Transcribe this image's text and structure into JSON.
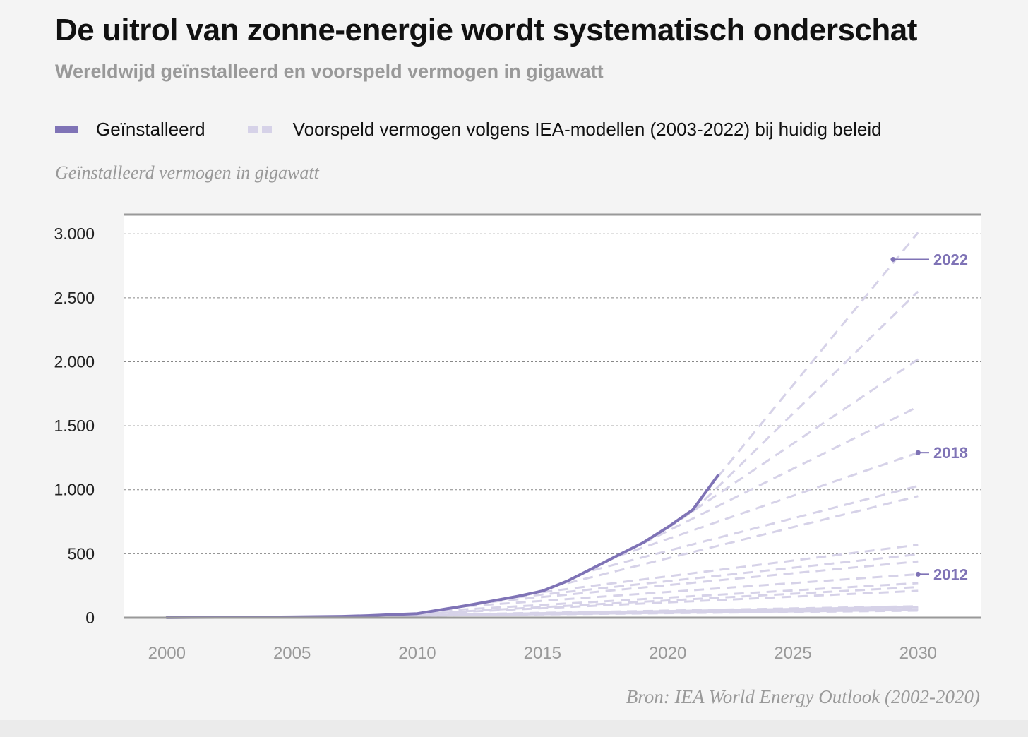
{
  "header": {
    "title": "De uitrol van zonne-energie wordt systematisch onderschat",
    "subtitle": "Wereldwijd geïnstalleerd en voorspeld vermogen in gigawatt"
  },
  "legend": {
    "installed": "Geïnstalleerd",
    "forecast": "Voorspeld vermogen volgens IEA-modellen (2003-2022) bij huidig beleid"
  },
  "footer": {
    "source": "Bron: IEA World Energy Outlook (2002-2020)"
  },
  "colors": {
    "installed": "#7f73b6",
    "forecast": "#d6d2e8",
    "grid": "#888888",
    "axis": "#999999"
  },
  "chart_data": {
    "type": "line",
    "ylabel": "Geïnstalleerd vermogen in gigawatt",
    "xlim": [
      1998.3,
      2032.5
    ],
    "ylim": [
      0,
      3150
    ],
    "x_ticks": [
      2000,
      2005,
      2010,
      2015,
      2020,
      2025,
      2030
    ],
    "x_tick_labels": [
      "2000",
      "2005",
      "2010",
      "2015",
      "2020",
      "2025",
      "2030"
    ],
    "y_ticks": [
      0,
      500,
      1000,
      1500,
      2000,
      2500,
      3000
    ],
    "y_tick_labels": [
      "0",
      "500",
      "1.000",
      "1.500",
      "2.000",
      "2.500",
      "3.000"
    ],
    "installed": {
      "x": [
        2000,
        2001,
        2002,
        2003,
        2004,
        2005,
        2006,
        2007,
        2008,
        2009,
        2010,
        2011,
        2012,
        2013,
        2014,
        2015,
        2016,
        2017,
        2018,
        2019,
        2020,
        2021,
        2022
      ],
      "y": [
        1,
        2,
        3,
        4,
        5,
        6,
        8,
        10,
        16,
        24,
        32,
        64,
        96,
        131,
        167,
        209,
        287,
        386,
        486,
        584,
        707,
        843,
        1110
      ]
    },
    "forecasts": [
      {
        "x": [
          2003,
          2030
        ],
        "y": [
          2,
          55
        ]
      },
      {
        "x": [
          2004,
          2030
        ],
        "y": [
          3,
          60
        ]
      },
      {
        "x": [
          2005,
          2030
        ],
        "y": [
          4,
          68
        ]
      },
      {
        "x": [
          2006,
          2030
        ],
        "y": [
          6,
          75
        ]
      },
      {
        "x": [
          2007,
          2030
        ],
        "y": [
          9,
          85
        ]
      },
      {
        "x": [
          2008,
          2030
        ],
        "y": [
          14,
          90
        ]
      },
      {
        "x": [
          2009,
          2030
        ],
        "y": [
          20,
          210
        ]
      },
      {
        "x": [
          2010,
          2030
        ],
        "y": [
          30,
          240
        ]
      },
      {
        "x": [
          2011,
          2030
        ],
        "y": [
          55,
          270
        ]
      },
      {
        "x": [
          2012,
          2030
        ],
        "y": [
          90,
          340
        ]
      },
      {
        "x": [
          2013,
          2030
        ],
        "y": [
          125,
          440
        ]
      },
      {
        "x": [
          2014,
          2030
        ],
        "y": [
          160,
          495
        ]
      },
      {
        "x": [
          2015,
          2030
        ],
        "y": [
          200,
          570
        ]
      },
      {
        "x": [
          2016,
          2030
        ],
        "y": [
          270,
          950
        ]
      },
      {
        "x": [
          2017,
          2030
        ],
        "y": [
          370,
          1030
        ]
      },
      {
        "x": [
          2018,
          2030
        ],
        "y": [
          480,
          1290
        ]
      },
      {
        "x": [
          2019,
          2030
        ],
        "y": [
          580,
          1650
        ]
      },
      {
        "x": [
          2020,
          2030
        ],
        "y": [
          700,
          2020
        ]
      },
      {
        "x": [
          2021,
          2030
        ],
        "y": [
          830,
          2550
        ]
      },
      {
        "x": [
          2022,
          2030
        ],
        "y": [
          1100,
          3010
        ]
      }
    ],
    "annotations": [
      {
        "label": "2022",
        "x": 2029,
        "y": 2800
      },
      {
        "label": "2018",
        "x": 2030,
        "y": 1290
      },
      {
        "label": "2012",
        "x": 2030,
        "y": 340
      }
    ]
  }
}
